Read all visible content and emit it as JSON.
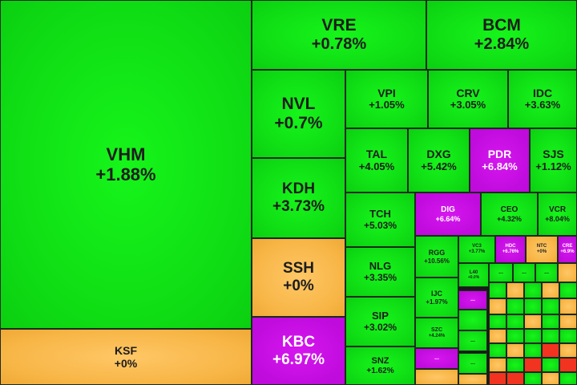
{
  "colors": {
    "up": "#0fdc14",
    "reference": "#f7b545",
    "ceiling": "#c410e0",
    "down": "#f2331f"
  },
  "tiles": [
    {
      "symbol": "VHM",
      "change": "+1.88%",
      "color": "g"
    },
    {
      "symbol": "KSF",
      "change": "+0%",
      "color": "y"
    },
    {
      "symbol": "VRE",
      "change": "+0.78%",
      "color": "g"
    },
    {
      "symbol": "BCM",
      "change": "+2.84%",
      "color": "g"
    },
    {
      "symbol": "NVL",
      "change": "+0.7%",
      "color": "g"
    },
    {
      "symbol": "KDH",
      "change": "+3.73%",
      "color": "g"
    },
    {
      "symbol": "SSH",
      "change": "+0%",
      "color": "y"
    },
    {
      "symbol": "KBC",
      "change": "+6.97%",
      "color": "p"
    },
    {
      "symbol": "VPI",
      "change": "+1.05%",
      "color": "g"
    },
    {
      "symbol": "CRV",
      "change": "+3.05%",
      "color": "g"
    },
    {
      "symbol": "IDC",
      "change": "+3.63%",
      "color": "g"
    },
    {
      "symbol": "TAL",
      "change": "+4.05%",
      "color": "g"
    },
    {
      "symbol": "DXG",
      "change": "+5.42%",
      "color": "g"
    },
    {
      "symbol": "PDR",
      "change": "+6.84%",
      "color": "p"
    },
    {
      "symbol": "SJS",
      "change": "+1.12%",
      "color": "g"
    },
    {
      "symbol": "TCH",
      "change": "+5.03%",
      "color": "g"
    },
    {
      "symbol": "DIG",
      "change": "+6.64%",
      "color": "p"
    },
    {
      "symbol": "CEO",
      "change": "+4.32%",
      "color": "g"
    },
    {
      "symbol": "VCR",
      "change": "+8.04%",
      "color": "g"
    },
    {
      "symbol": "NLG",
      "change": "+3.35%",
      "color": "g"
    },
    {
      "symbol": "SIP",
      "change": "+3.02%",
      "color": "g"
    },
    {
      "symbol": "SNZ",
      "change": "+1.62%",
      "color": "g"
    },
    {
      "symbol": "RGG",
      "change": "+10.56%",
      "color": "g"
    },
    {
      "symbol": "IJC",
      "change": "+1.97%",
      "color": "g"
    },
    {
      "symbol": "SZC",
      "change": "+4.24%",
      "color": "g"
    },
    {
      "symbol": "VC3",
      "change": "+3.77%",
      "color": "g"
    },
    {
      "symbol": "HDC",
      "change": "+6.76%",
      "color": "p"
    },
    {
      "symbol": "NTC",
      "change": "+0%",
      "color": "y"
    },
    {
      "symbol": "CRE",
      "change": "+6.9%",
      "color": "p"
    },
    {
      "symbol": "L40",
      "change": "+0.0%",
      "color": "g"
    },
    {
      "symbol": "...",
      "change": "",
      "color": "p"
    },
    {
      "symbol": "...",
      "change": "",
      "color": "p"
    },
    {
      "symbol": "...",
      "change": "",
      "color": "g"
    },
    {
      "symbol": "...",
      "change": "",
      "color": "g"
    },
    {
      "symbol": "...",
      "change": "",
      "color": "g"
    },
    {
      "symbol": "...",
      "change": "",
      "color": "g"
    },
    {
      "symbol": "...",
      "change": "",
      "color": "g"
    }
  ]
}
